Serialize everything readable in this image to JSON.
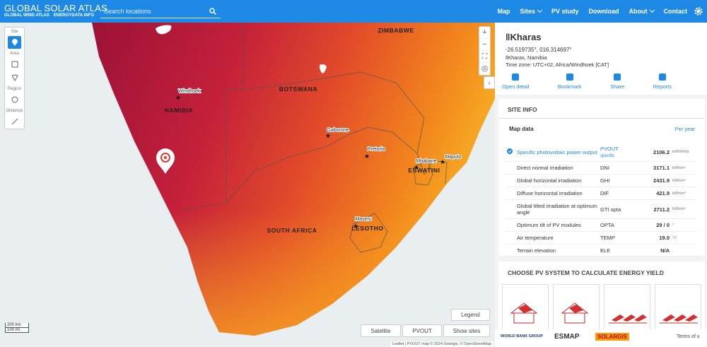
{
  "header": {
    "logo": "GLOBAL SOLAR ATLAS",
    "sublinks": [
      "GLOBAL WIND ATLAS",
      "ENERGYDATA.INFO"
    ],
    "search_placeholder": "Search locations",
    "nav": [
      "Map",
      "Sites",
      "PV study",
      "Download",
      "About",
      "Contact"
    ]
  },
  "map": {
    "tools": [
      "Site",
      "Area",
      "Region",
      "Distance"
    ],
    "labels": [
      "ZIMBABWE",
      "Windhoek",
      "NAMIBIA",
      "BOTSWANA",
      "Gaborone",
      "Pretoria",
      "Mbabane",
      "ESWATINI",
      "Maputo",
      "Maseru",
      "LESOTHO",
      "SOUTH AFRICA"
    ],
    "buttons": {
      "legend": "Legend",
      "satellite": "Satellite",
      "layer": "PVOUT",
      "show_sites": "Show sites"
    },
    "scale": [
      "200 km",
      "100 mi"
    ],
    "attribution": "Leaflet | PVOUT map © 2024 Solargis, © OpenStreetMap"
  },
  "panel": {
    "title": "ǁKharas",
    "coordinates": "-26.519735°, 016.314697°",
    "place": "ǁKharas, Namibia",
    "timezone": "Time zone: UTC+02, Africa/Windhoek [CAT]",
    "actions": [
      "Open detail",
      "Bookmark",
      "Share",
      "Reports"
    ],
    "site_info": "SITE INFO",
    "map_data": "Map data",
    "period": "Per year",
    "rows": [
      {
        "label": "Specific photovoltaic power output",
        "abbr": "PVOUT",
        "abbr_sub": "specific",
        "value": "2106.2",
        "unit": "kWh/kWp"
      },
      {
        "label": "Direct normal irradiation",
        "abbr": "DNI",
        "value": "3171.1",
        "unit": "kWh/m²"
      },
      {
        "label": "Global horizontal irradiation",
        "abbr": "GHI",
        "value": "2431.9",
        "unit": "kWh/m²"
      },
      {
        "label": "Diffuse horizontal irradiation",
        "abbr": "DIF",
        "value": "421.9",
        "unit": "kWh/m²"
      },
      {
        "label": "Global tilted irradiation at optimum angle",
        "abbr": "GTI opta",
        "value": "2711.2",
        "unit": "kWh/m²"
      },
      {
        "label": "Optimum tilt of PV modules",
        "abbr": "OPTA",
        "value": "29 / 0",
        "unit": "°"
      },
      {
        "label": "Air temperature",
        "abbr": "TEMP",
        "value": "19.0",
        "unit": "°C"
      },
      {
        "label": "Terrain elevation",
        "abbr": "ELE",
        "value": "N/A"
      }
    ],
    "pv_heading": "CHOOSE PV SYSTEM TO CALCULATE ENERGY YIELD"
  },
  "footer": {
    "logos": [
      "WORLD BANK GROUP",
      "ESMAP",
      "SOLARGIS"
    ],
    "terms": "Terms of u"
  }
}
